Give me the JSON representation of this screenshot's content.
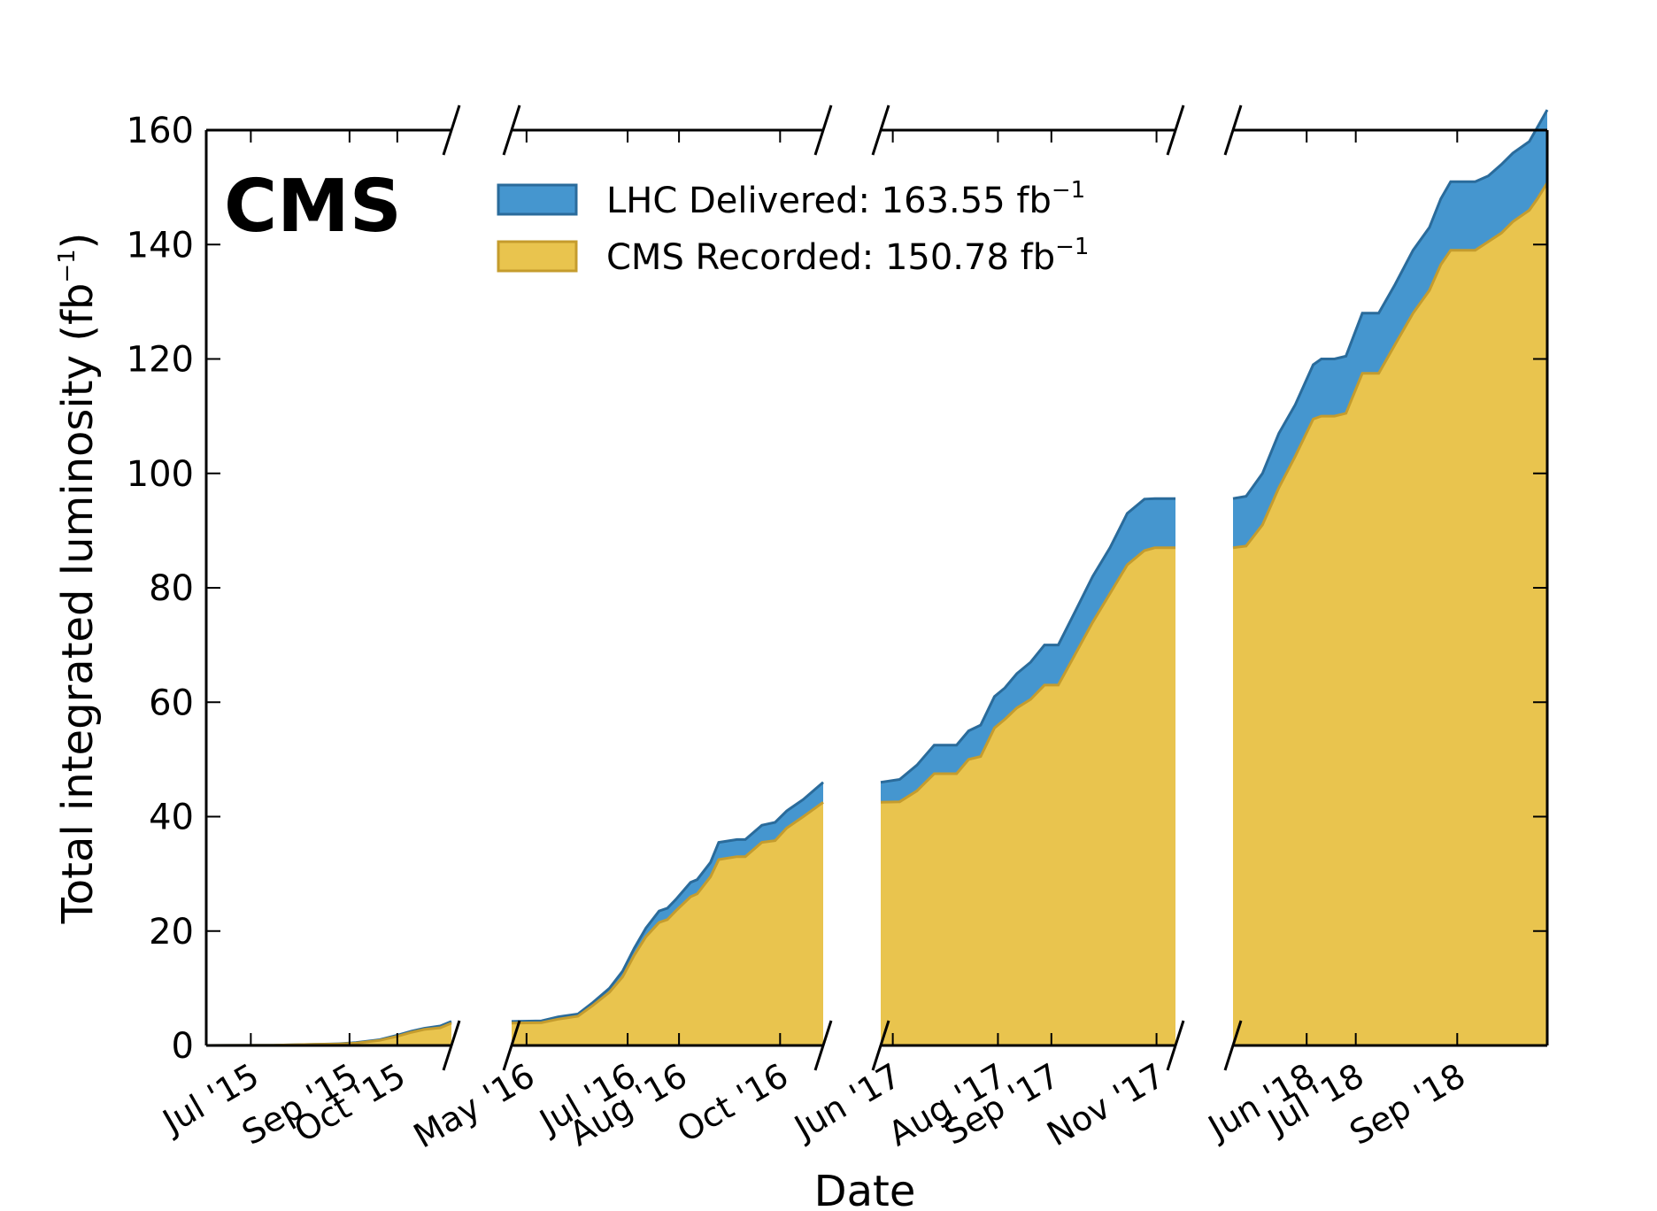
{
  "chart_data": {
    "type": "area",
    "brand": "CMS",
    "xlabel": "Date",
    "ylabel": "Total integrated luminosity (fb",
    "ylabel_unit_sup": "−1",
    "ylabel_close": ")",
    "ylim": [
      0,
      160
    ],
    "yticks": [
      "0",
      "20",
      "40",
      "60",
      "80",
      "100",
      "120",
      "140",
      "160"
    ],
    "grid": false,
    "legend_position": "top-center",
    "unit_sup": "−1",
    "legend": [
      {
        "label": "LHC Delivered: 163.55 fb",
        "color": "#4596cf",
        "edge": "#2a6b9b"
      },
      {
        "label": "CMS Recorded: 150.78 fb",
        "color": "#e9c44e",
        "edge": "#c59c2d"
      }
    ],
    "panels": [
      {
        "xrange": [
          "2015-06-03",
          "2015-11-04"
        ],
        "ticks": [
          {
            "date": "2015-07-01",
            "label": "Jul '15"
          },
          {
            "date": "2015-09-01",
            "label": "Sep '15"
          },
          {
            "date": "2015-10-01",
            "label": "Oct '15"
          }
        ],
        "dates": [
          "2015-06-03",
          "2015-07-15",
          "2015-08-10",
          "2015-08-25",
          "2015-09-05",
          "2015-09-20",
          "2015-10-01",
          "2015-10-10",
          "2015-10-18",
          "2015-10-28",
          "2015-11-04"
        ],
        "delivered": [
          0,
          0.05,
          0.2,
          0.3,
          0.5,
          1.0,
          1.8,
          2.5,
          3.0,
          3.4,
          4.2
        ],
        "recorded": [
          0,
          0.04,
          0.18,
          0.25,
          0.4,
          0.9,
          1.6,
          2.3,
          2.8,
          3.1,
          3.9
        ]
      },
      {
        "xrange": [
          "2016-04-22",
          "2016-10-27"
        ],
        "ticks": [
          {
            "date": "2016-05-01",
            "label": "May '16"
          },
          {
            "date": "2016-07-01",
            "label": "Jul '16"
          },
          {
            "date": "2016-08-01",
            "label": "Aug '16"
          },
          {
            "date": "2016-10-01",
            "label": "Oct '16"
          }
        ],
        "dates": [
          "2016-04-22",
          "2016-05-10",
          "2016-05-20",
          "2016-06-01",
          "2016-06-10",
          "2016-06-20",
          "2016-06-28",
          "2016-07-05",
          "2016-07-12",
          "2016-07-20",
          "2016-07-25",
          "2016-07-30",
          "2016-08-08",
          "2016-08-12",
          "2016-08-20",
          "2016-08-25",
          "2016-09-05",
          "2016-09-10",
          "2016-09-20",
          "2016-09-28",
          "2016-10-05",
          "2016-10-15",
          "2016-10-27"
        ],
        "delivered": [
          4.2,
          4.3,
          5.0,
          5.5,
          7.5,
          10.0,
          13.0,
          17.0,
          20.5,
          23.5,
          24.0,
          25.5,
          28.5,
          29.0,
          32.0,
          35.5,
          36.0,
          36.0,
          38.5,
          39.0,
          41.0,
          43.0,
          46.0
        ],
        "recorded": [
          3.9,
          4.0,
          4.6,
          5.1,
          7.0,
          9.3,
          12.0,
          15.8,
          19.0,
          21.5,
          22.0,
          23.5,
          26.0,
          26.5,
          29.5,
          32.5,
          33.0,
          33.0,
          35.5,
          35.8,
          38.0,
          40.0,
          42.5
        ]
      },
      {
        "xrange": [
          "2017-05-25",
          "2017-11-12"
        ],
        "ticks": [
          {
            "date": "2017-06-01",
            "label": "Jun '17"
          },
          {
            "date": "2017-08-01",
            "label": "Aug '17"
          },
          {
            "date": "2017-09-01",
            "label": "Sep '17"
          },
          {
            "date": "2017-11-01",
            "label": "Nov '17"
          }
        ],
        "dates": [
          "2017-05-25",
          "2017-06-05",
          "2017-06-15",
          "2017-06-25",
          "2017-07-08",
          "2017-07-15",
          "2017-07-22",
          "2017-07-30",
          "2017-08-05",
          "2017-08-12",
          "2017-08-20",
          "2017-08-28",
          "2017-09-05",
          "2017-09-15",
          "2017-09-25",
          "2017-10-05",
          "2017-10-15",
          "2017-10-25",
          "2017-10-31",
          "2017-11-12"
        ],
        "delivered": [
          46.0,
          46.5,
          49.0,
          52.5,
          52.5,
          55.0,
          56.0,
          61.0,
          62.5,
          65.0,
          67.0,
          70.0,
          70.0,
          76.0,
          82.0,
          87.0,
          93.0,
          95.5,
          95.6,
          95.6
        ],
        "recorded": [
          42.5,
          42.6,
          44.5,
          47.5,
          47.5,
          50.0,
          50.5,
          55.5,
          57.0,
          59.0,
          60.5,
          63.0,
          63.0,
          68.5,
          74.0,
          79.0,
          84.0,
          86.5,
          87.0,
          87.0
        ]
      },
      {
        "xrange": [
          "2018-04-17",
          "2018-10-26"
        ],
        "ticks": [
          {
            "date": "2018-06-01",
            "label": "Jun '18"
          },
          {
            "date": "2018-07-01",
            "label": "Jul '18"
          },
          {
            "date": "2018-09-01",
            "label": "Sep '18"
          }
        ],
        "dates": [
          "2018-04-17",
          "2018-04-25",
          "2018-05-05",
          "2018-05-15",
          "2018-05-25",
          "2018-06-05",
          "2018-06-10",
          "2018-06-18",
          "2018-06-25",
          "2018-07-05",
          "2018-07-15",
          "2018-07-25",
          "2018-08-05",
          "2018-08-15",
          "2018-08-22",
          "2018-08-28",
          "2018-09-05",
          "2018-09-12",
          "2018-09-20",
          "2018-09-28",
          "2018-10-05",
          "2018-10-15",
          "2018-10-20",
          "2018-10-26"
        ],
        "delivered": [
          95.6,
          96.0,
          100.0,
          107.0,
          112.0,
          119.0,
          120.0,
          120.0,
          120.5,
          128.0,
          128.0,
          133.0,
          139.0,
          143.0,
          148.0,
          151.0,
          151.0,
          151.0,
          152.0,
          154.0,
          156.0,
          158.0,
          160.5,
          163.55
        ],
        "recorded": [
          87.0,
          87.3,
          91.0,
          97.5,
          103.0,
          109.5,
          110.0,
          110.0,
          110.5,
          117.5,
          117.5,
          122.5,
          128.0,
          132.0,
          136.5,
          139.0,
          139.0,
          139.0,
          140.5,
          142.0,
          144.0,
          146.0,
          148.0,
          150.78
        ]
      }
    ]
  }
}
